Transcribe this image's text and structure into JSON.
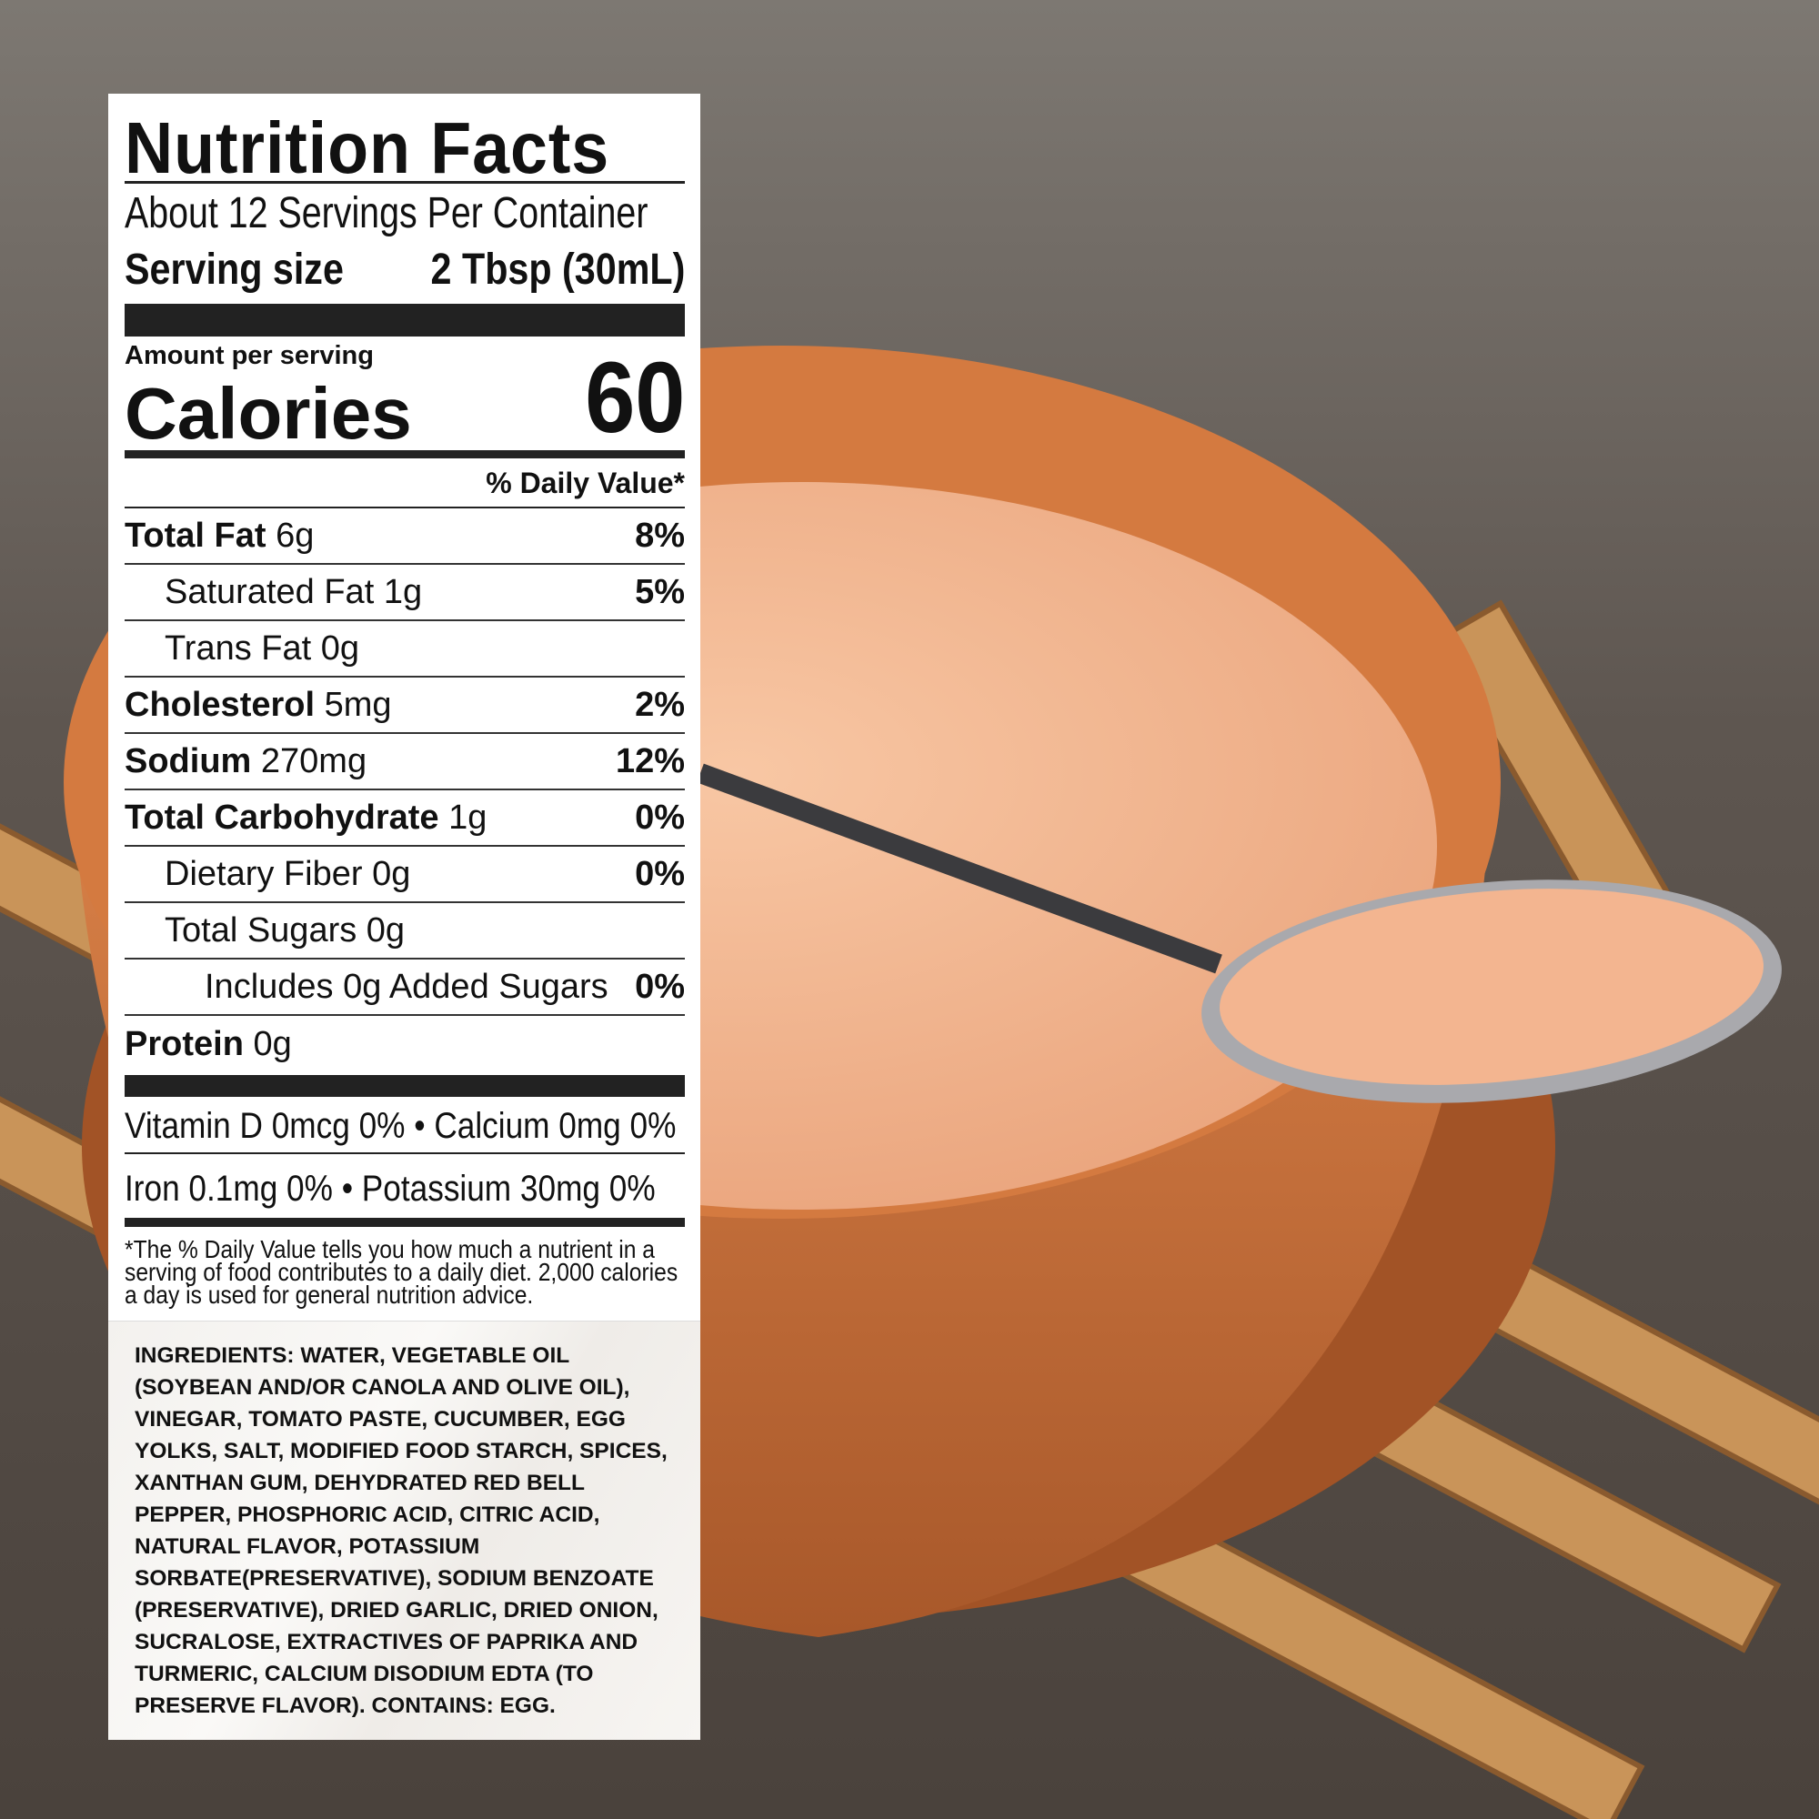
{
  "label": {
    "title": "Nutrition Facts",
    "servings_per_container": "About 12 Servings Per Container",
    "serving_size_label": "Serving size",
    "serving_size_value": "2 Tbsp (30mL)",
    "amount_per_serving": "Amount per serving",
    "calories_label": "Calories",
    "calories_value": "60",
    "daily_value_header": "% Daily Value*",
    "nutrients": [
      {
        "name": "Total Fat",
        "amount": "6g",
        "dv": "8%"
      },
      {
        "name": "Saturated Fat",
        "amount": "1g",
        "dv": "5%"
      },
      {
        "name": "Trans Fat",
        "amount": "0g",
        "dv": ""
      },
      {
        "name": "Cholesterol",
        "amount": "5mg",
        "dv": "2%"
      },
      {
        "name": "Sodium",
        "amount": "270mg",
        "dv": "12%"
      },
      {
        "name": "Total Carbohydrate",
        "amount": "1g",
        "dv": "0%"
      },
      {
        "name": "Dietary Fiber",
        "amount": "0g",
        "dv": "0%"
      },
      {
        "name": "Total Sugars",
        "amount": "0g",
        "dv": ""
      },
      {
        "name": "Includes 0g Added Sugars",
        "amount": "",
        "dv": "0%"
      },
      {
        "name": "Protein",
        "amount": "0g",
        "dv": ""
      }
    ],
    "vitamins_line1": "Vitamin D 0mcg  0% • Calcium 0mg 0%",
    "vitamins_line2": "Iron 0.1mg  0%  •  Potassium 30mg  0%",
    "footnote": "*The % Daily Value tells you how much a nutrient in a serving of food contributes to a daily diet. 2,000 calories a day is used for general nutrition advice.",
    "ingredients": "INGREDIENTS: WATER, VEGETABLE OIL (SOYBEAN AND/OR CANOLA AND OLIVE OIL), VINEGAR, TOMATO PASTE, CUCUMBER, EGG YOLKS, SALT, MODIFIED FOOD STARCH, SPICES, XANTHAN GUM, DEHYDRATED RED BELL PEPPER, PHOSPHORIC ACID, CITRIC ACID, NATURAL FLAVOR, POTASSIUM SORBATE(PRESERVATIVE), SODIUM BENZOATE (PRESERVATIVE), DRIED GARLIC, DRIED ONION, SUCRALOSE, EXTRACTIVES OF PAPRIKA AND TURMERIC, CALCIUM DISODIUM EDTA (TO PRESERVE FLAVOR). CONTAINS: EGG."
  },
  "colors": {
    "bowl": "#c8703a",
    "sauce": "#f2b48e",
    "wood_table": "#6e6862",
    "mat": "#c8955a"
  }
}
